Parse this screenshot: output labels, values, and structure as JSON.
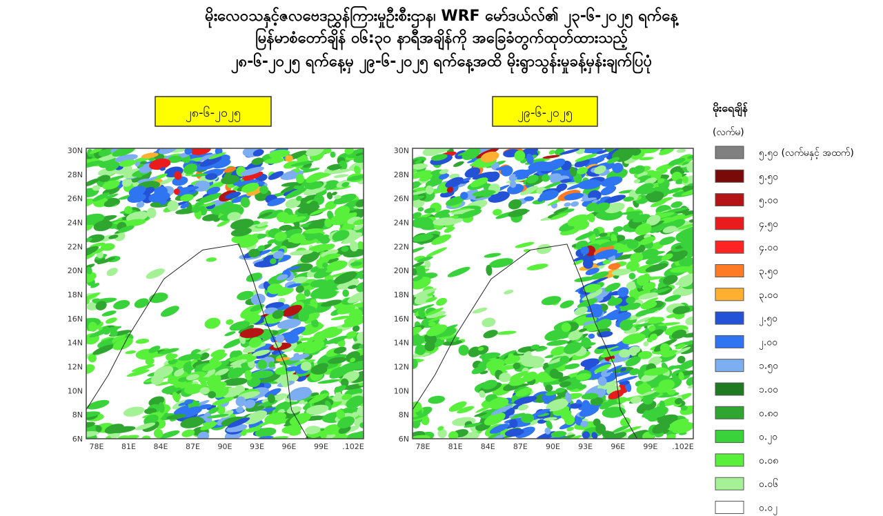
{
  "title": {
    "lines": [
      "မိုးလေဝသနှင့်ဇလဗေဒညွှန်ကြားမှုဦးစီးဌာန၊ WRF မော်ဒယ်လ်၏ ၂၃-၆-၂၀၂၅ ရက်နေ့",
      "မြန်မာစံတော်ချိန် ၀၆:၃၀ နာရီအချိန်ကို အခြေခံတွက်ထုတ်ထားသည့်",
      "၂၈-၆-၂၀၂၅ ရက်နေ့မှ ၂၉-၆-၂၀၂၅ ရက်နေ့အထိ မိုးရွာသွန်းမှုခန့်မှန်းချက်ပြပုံ"
    ]
  },
  "maps": [
    {
      "date": "၂၈-၆-၂၀၂၅",
      "yticks": [
        "30N",
        "28N",
        "26N",
        "24N",
        "22N",
        "20N",
        "18N",
        "16N",
        "14N",
        "12N",
        "10N",
        "8N",
        "6N"
      ],
      "xticks": [
        "78E",
        "81E",
        "84E",
        "87E",
        "90E",
        "93E",
        "96E",
        "99E",
        ".102E"
      ]
    },
    {
      "date": "၂၉-၆-၂၀၂၅",
      "yticks": [
        "30N",
        "28N",
        "26N",
        "24N",
        "22N",
        "20N",
        "18N",
        "16N",
        "14N",
        "12N",
        "10N",
        "8N",
        "6N"
      ],
      "xticks": [
        "78E",
        "81E",
        "84E",
        "87E",
        "90E",
        "93E",
        "96E",
        "99E",
        ".102E"
      ]
    }
  ],
  "legend": {
    "title": "မိုးရေချိန်",
    "unit": "(လက်မ)",
    "items": [
      {
        "label": "၅.၅၀ (လက်မနှင့် အထက်)",
        "color": "#808080"
      },
      {
        "label": "၅.၅၀",
        "color": "#7a0a0a"
      },
      {
        "label": "၅.၀၀",
        "color": "#b41414"
      },
      {
        "label": "၄.၅၀",
        "color": "#e81c1c"
      },
      {
        "label": "၄.၀၀",
        "color": "#ff2424"
      },
      {
        "label": "၃.၅၀",
        "color": "#ff7a24"
      },
      {
        "label": "၃.၀၀",
        "color": "#ffb030"
      },
      {
        "label": "၂.၅၀",
        "color": "#2452d6"
      },
      {
        "label": "၂.၀၀",
        "color": "#2f74f0"
      },
      {
        "label": "၁.၅၀",
        "color": "#7eaef2"
      },
      {
        "label": "၁.၀၀",
        "color": "#1f7a22"
      },
      {
        "label": "၀.၈၀",
        "color": "#2fa62f"
      },
      {
        "label": "၀.၂၀",
        "color": "#3ad23a"
      },
      {
        "label": "၀.၀၈",
        "color": "#58f03a"
      },
      {
        "label": "၀.၀၆",
        "color": "#a4f295"
      },
      {
        "label": "၀.၀၂",
        "color": "#ffffff"
      }
    ]
  }
}
